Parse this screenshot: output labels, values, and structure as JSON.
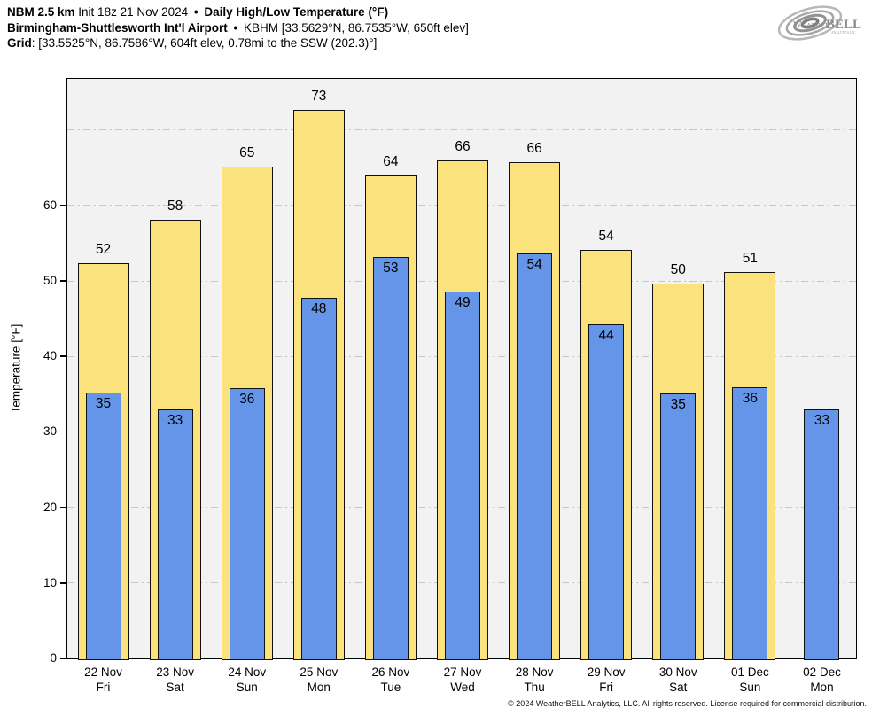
{
  "header": {
    "line1": {
      "model": "NBM 2.5 km",
      "init": "Init 18z 21 Nov 2024",
      "bullet": "•",
      "product": "Daily High/Low Temperature (°F)"
    },
    "line2": {
      "station": "Birmingham-Shuttlesworth Int'l Airport",
      "bullet": "•",
      "station_meta": "KBHM [33.5629°N, 86.7535°W, 650ft elev]"
    },
    "line3": {
      "label": "Grid",
      "value": ": [33.5525°N, 86.7586°W, 604ft elev, 0.78mi to the SSW (202.3)°]"
    }
  },
  "logo": {
    "brand_weather": "Weather",
    "brand_bell": "BELL",
    "brand_sub": "Analytics LLC"
  },
  "footer": {
    "copyright": "© 2024 WeatherBELL Analytics, LLC. All rights reserved. License required for commercial distribution."
  },
  "chart_data": {
    "type": "bar",
    "title": "Daily High/Low Temperature (°F)",
    "xlabel": "",
    "ylabel": "Temperature [°F]",
    "ylim": [
      0,
      77
    ],
    "ytick_step": 10,
    "grid": true,
    "legend_position": "none",
    "plot_background": "#f2f2f2",
    "categories": [
      {
        "date": "22 Nov",
        "day": "Fri"
      },
      {
        "date": "23 Nov",
        "day": "Sat"
      },
      {
        "date": "24 Nov",
        "day": "Sun"
      },
      {
        "date": "25 Nov",
        "day": "Mon"
      },
      {
        "date": "26 Nov",
        "day": "Tue"
      },
      {
        "date": "27 Nov",
        "day": "Wed"
      },
      {
        "date": "28 Nov",
        "day": "Thu"
      },
      {
        "date": "29 Nov",
        "day": "Fri"
      },
      {
        "date": "30 Nov",
        "day": "Sat"
      },
      {
        "date": "01 Dec",
        "day": "Sun"
      },
      {
        "date": "02 Dec",
        "day": "Mon"
      }
    ],
    "series": [
      {
        "name": "Daily High",
        "color": "#fce27d",
        "values": [
          52.3,
          58.1,
          65.2,
          72.7,
          64.0,
          66.0,
          65.7,
          54.1,
          49.7,
          51.2,
          null
        ],
        "labels": [
          52,
          58,
          65,
          73,
          64,
          66,
          66,
          54,
          50,
          51,
          null
        ]
      },
      {
        "name": "Daily Low",
        "color": "#6495e9",
        "values": [
          35.2,
          33.0,
          35.8,
          47.8,
          53.2,
          48.6,
          53.7,
          44.2,
          35.1,
          35.9,
          33.0
        ],
        "labels": [
          35,
          33,
          36,
          48,
          53,
          49,
          54,
          44,
          35,
          36,
          33
        ]
      }
    ]
  }
}
